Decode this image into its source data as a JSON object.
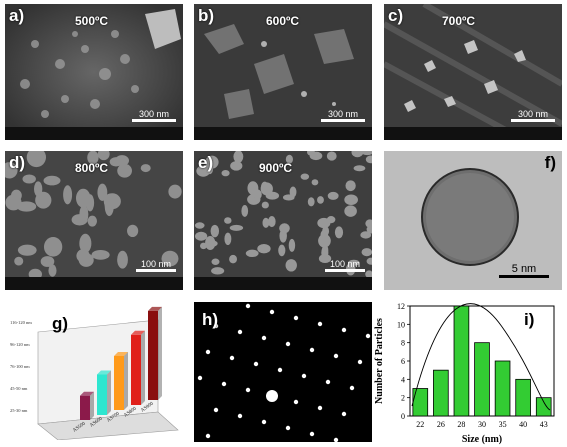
{
  "panels": {
    "a": {
      "label": "a)",
      "temp": "500ºC",
      "scale": "300 nm"
    },
    "b": {
      "label": "b)",
      "temp": "600ºC",
      "scale": "300 nm"
    },
    "c": {
      "label": "c)",
      "temp": "700ºC",
      "scale": "300 nm"
    },
    "d": {
      "label": "d)",
      "temp": "800ºC",
      "scale": "100 nm"
    },
    "e": {
      "label": "e)",
      "temp": "900ºC",
      "scale": "100 nm"
    },
    "f": {
      "label": "f)",
      "scale": "5 nm"
    },
    "g": {
      "label": "g)"
    },
    "h": {
      "label": "h)"
    },
    "i": {
      "label": "i)"
    }
  },
  "chart_3d": {
    "type": "bar",
    "categories": [
      "AS500",
      "AS600",
      "AS700",
      "AS800",
      "AS900"
    ],
    "values": [
      27,
      45,
      60,
      78,
      99
    ],
    "colors": [
      "#8b1a4a",
      "#2ee6d0",
      "#ff9a1a",
      "#e0201a",
      "#8a0f0f"
    ],
    "axis_ticks": [
      "116-120 nm",
      "96-120 nm",
      "76-100 nm",
      "45-50 nm",
      "25-30 nm"
    ]
  },
  "chart_data": {
    "type": "bar",
    "categories": [
      "22",
      "26",
      "28",
      "30",
      "35",
      "40",
      "43"
    ],
    "values": [
      3,
      5,
      12,
      8,
      6,
      4,
      2
    ],
    "xlabel": "Size (nm)",
    "ylabel": "Number of Particles",
    "ylim": [
      0,
      12
    ],
    "yticks": [
      0,
      2,
      4,
      6,
      8,
      10,
      12
    ],
    "bar_color": "#33cc33"
  }
}
